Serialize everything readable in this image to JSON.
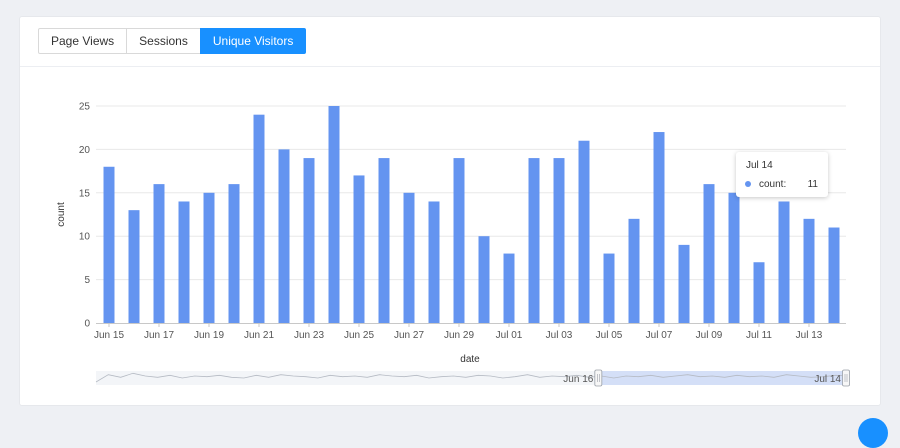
{
  "tabs": [
    {
      "label": "Page Views",
      "active": false
    },
    {
      "label": "Sessions",
      "active": false
    },
    {
      "label": "Unique Visitors",
      "active": true
    }
  ],
  "colors": {
    "bar": "#6494f0",
    "active_tab": "#1890ff",
    "grid": "#e8e8e8",
    "slider_fill": "#c9d7f7"
  },
  "tooltip": {
    "title": "Jul 14",
    "label": "count:",
    "value": "11"
  },
  "slider": {
    "start_label": "Jun 16",
    "end_label": "Jul 14",
    "range_start": "Jun 16",
    "range_end": "Jul 14",
    "overview_values": [
      3,
      14,
      10,
      16,
      12,
      10,
      13,
      9,
      12,
      11,
      13,
      10,
      9,
      13,
      10,
      14,
      12,
      11,
      9,
      13,
      11,
      12,
      10,
      14,
      12,
      11,
      13,
      9,
      11,
      12,
      10,
      13,
      12,
      9,
      11,
      14,
      10,
      12,
      11,
      13,
      10,
      12,
      9,
      12,
      11,
      13,
      10,
      12,
      14,
      11,
      12,
      10,
      13,
      11,
      12,
      10,
      14,
      12,
      10,
      11,
      13,
      12
    ]
  },
  "chart_data": {
    "type": "bar",
    "xlabel": "date",
    "ylabel": "count",
    "ylim": [
      0,
      25
    ],
    "yticks": [
      0,
      5,
      10,
      15,
      20,
      25
    ],
    "xtick_labels": [
      "Jun 15",
      "Jun 17",
      "Jun 19",
      "Jun 21",
      "Jun 23",
      "Jun 25",
      "Jun 27",
      "Jun 29",
      "Jul 01",
      "Jul 03",
      "Jul 05",
      "Jul 07",
      "Jul 09",
      "Jul 11",
      "Jul 13"
    ],
    "grid": true,
    "categories": [
      "Jun 15",
      "Jun 16",
      "Jun 17",
      "Jun 18",
      "Jun 19",
      "Jun 20",
      "Jun 21",
      "Jun 22",
      "Jun 23",
      "Jun 24",
      "Jun 25",
      "Jun 26",
      "Jun 27",
      "Jun 28",
      "Jun 29",
      "Jun 30",
      "Jul 01",
      "Jul 02",
      "Jul 03",
      "Jul 04",
      "Jul 05",
      "Jul 06",
      "Jul 07",
      "Jul 08",
      "Jul 09",
      "Jul 10",
      "Jul 11",
      "Jul 12",
      "Jul 13",
      "Jul 14"
    ],
    "series": [
      {
        "values": [
          18,
          13,
          16,
          14,
          15,
          16,
          24,
          20,
          19,
          25,
          17,
          19,
          15,
          14,
          19,
          10,
          8,
          19,
          19,
          21,
          8,
          12,
          22,
          9,
          16,
          15,
          7,
          14,
          12,
          11
        ]
      }
    ]
  }
}
